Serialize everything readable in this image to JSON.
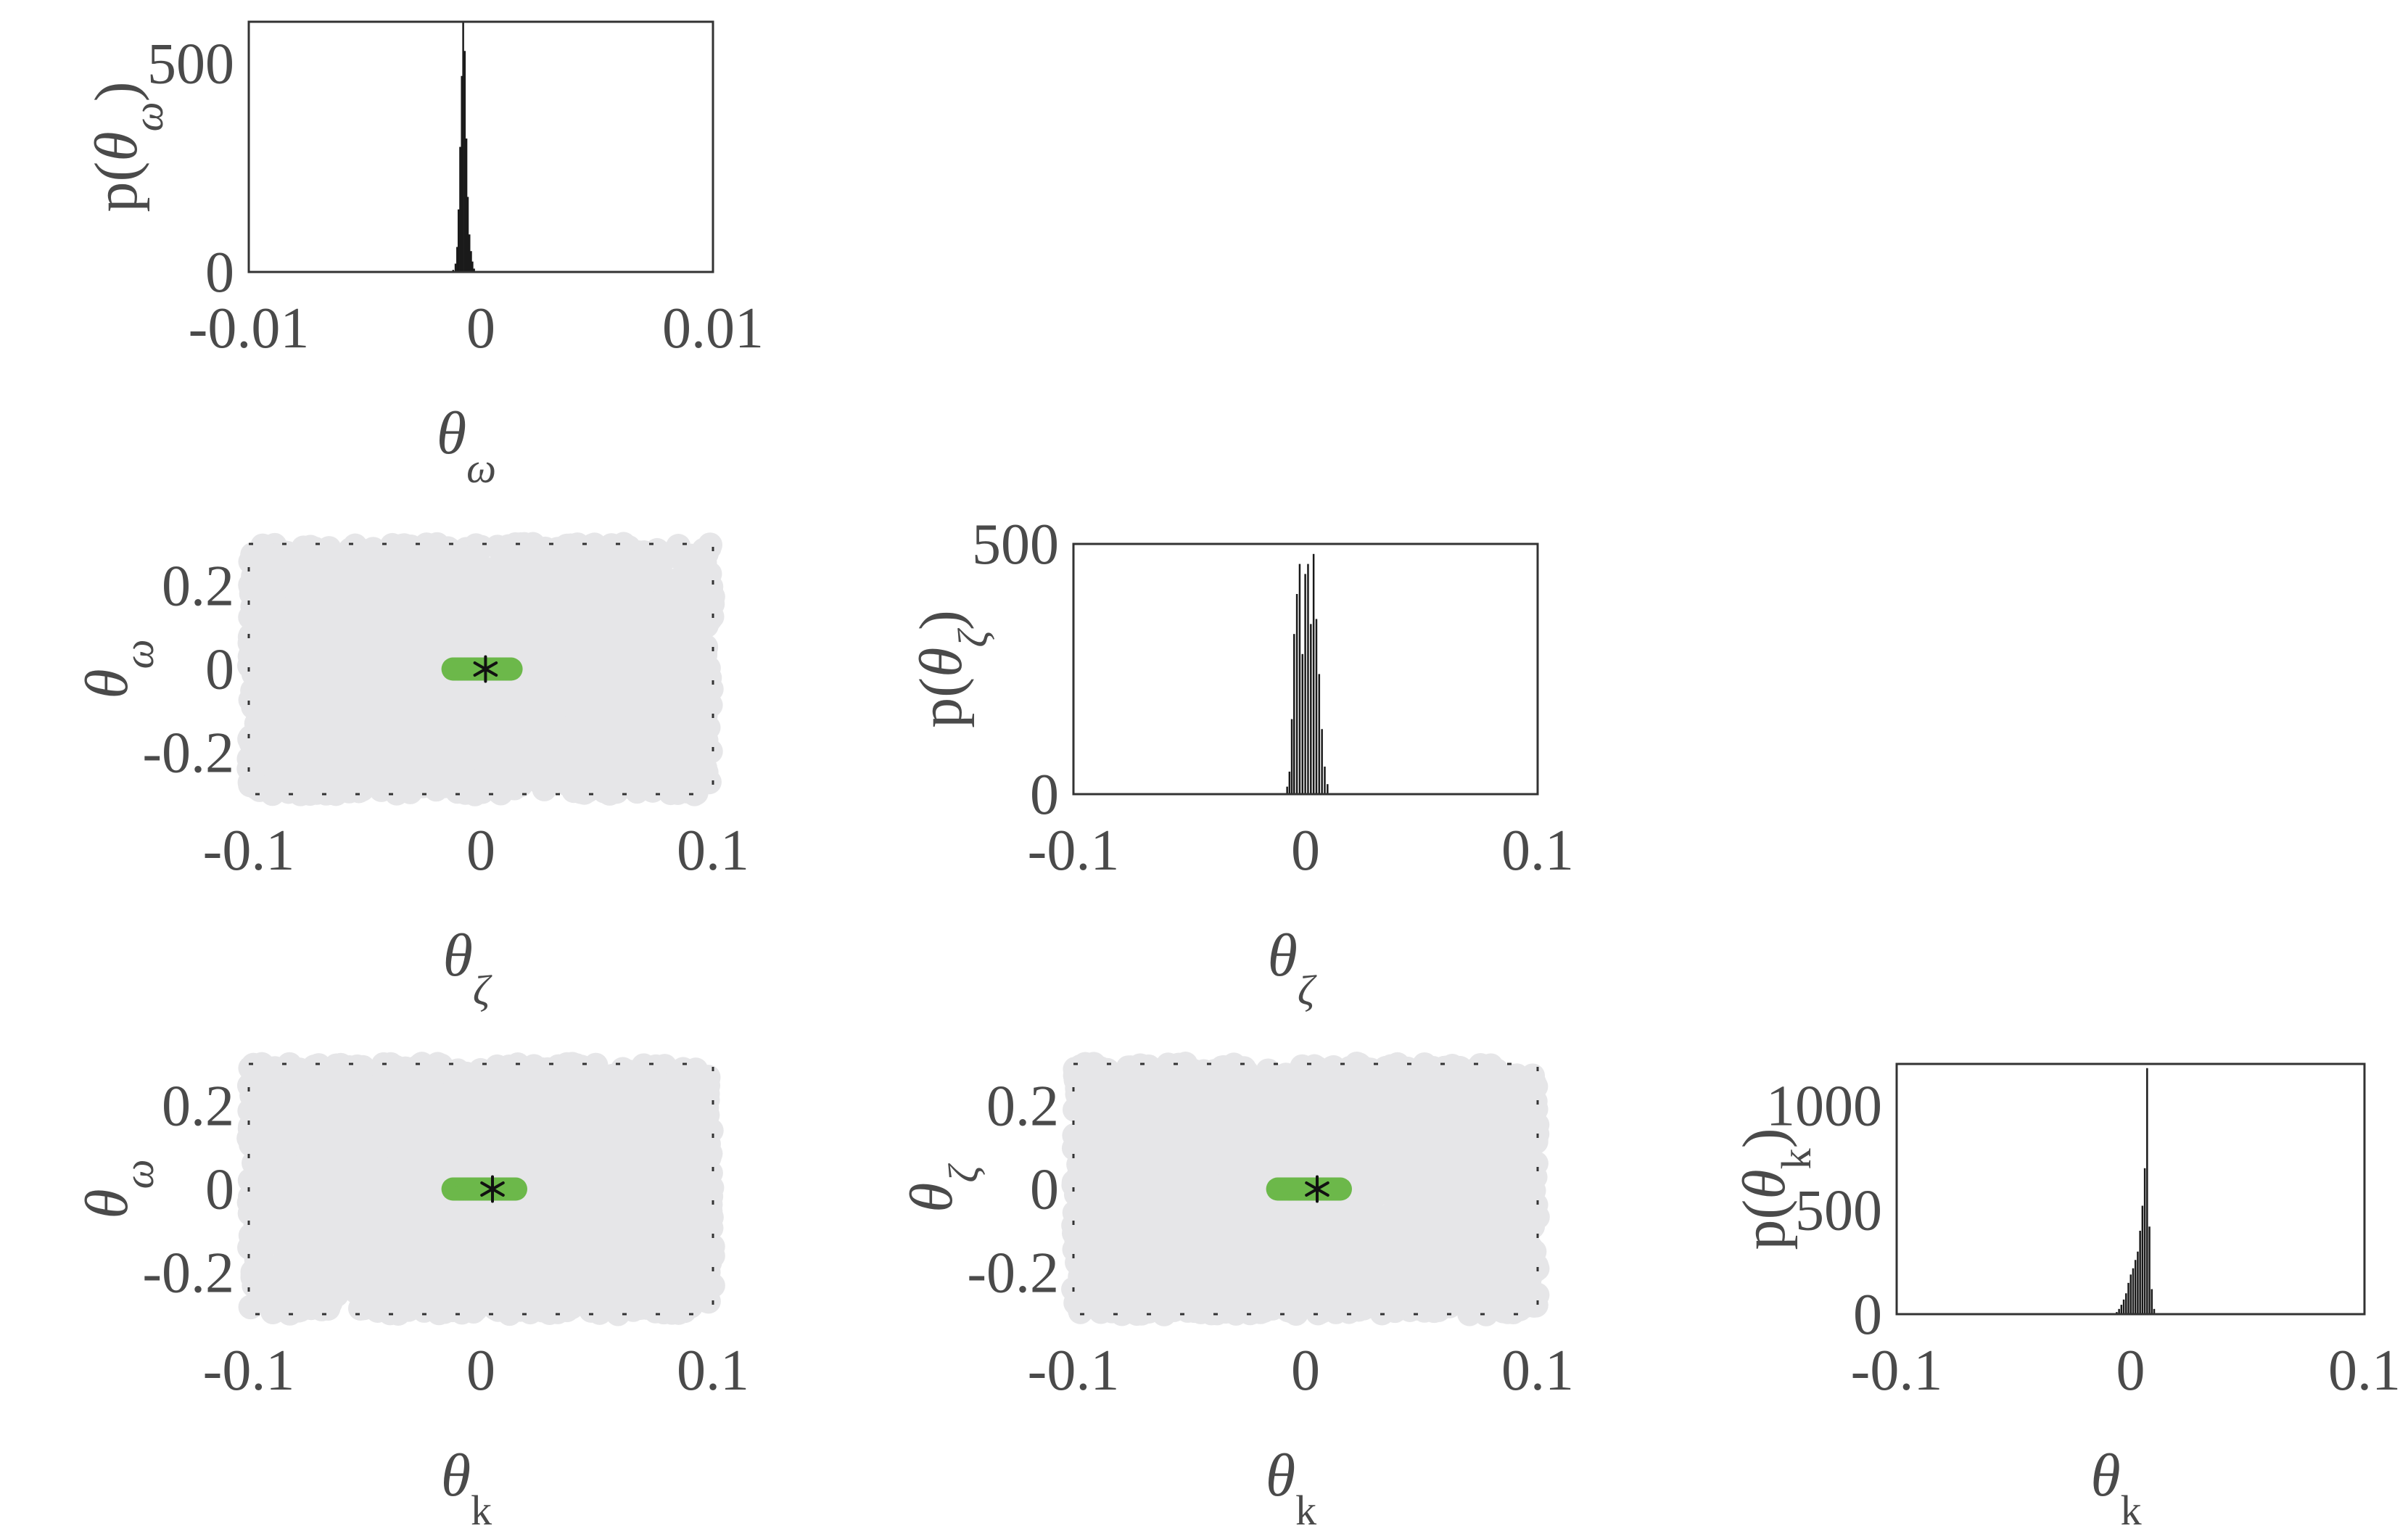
{
  "figure": {
    "colors": {
      "prior": "#e6e6e8",
      "posterior": "#6cb84a",
      "histogram": "#1a1a1a",
      "axis_text": "#4a4a4a",
      "frame": "#333333",
      "marker": "#111111"
    },
    "symbols": {
      "theta": "θ",
      "p_prefix": "p(",
      "p_suffix": ")"
    }
  },
  "chart_data": [
    {
      "type": "histogram",
      "row": 1,
      "col": 1,
      "xlabel": {
        "symbol": "θ",
        "sub": "ω"
      },
      "ylabel": {
        "symbol": "θ",
        "sub": "ω"
      },
      "xlim": [
        -0.01,
        0.01
      ],
      "ylim": [
        0,
        600
      ],
      "xticks": [
        -0.01,
        0,
        0.01
      ],
      "xtick_labels": [
        "-0.01",
        "0",
        "0.01"
      ],
      "yticks": [
        0,
        500
      ],
      "ytick_labels": [
        "0",
        "500"
      ],
      "bins": [
        [
          -0.0012,
          5
        ],
        [
          -0.0011,
          20
        ],
        [
          -0.00103,
          60
        ],
        [
          -0.00097,
          150
        ],
        [
          -0.0009,
          300
        ],
        [
          -0.00083,
          470
        ],
        [
          -0.00077,
          600
        ],
        [
          -0.0007,
          530
        ],
        [
          -0.00063,
          320
        ],
        [
          -0.00057,
          180
        ],
        [
          -0.0005,
          90
        ],
        [
          -0.00043,
          50
        ],
        [
          -0.00037,
          25
        ],
        [
          -0.0003,
          8
        ]
      ]
    },
    {
      "type": "scatter",
      "row": 2,
      "col": 1,
      "xlabel": {
        "symbol": "θ",
        "sub": "ζ"
      },
      "ylabel": {
        "symbol": "θ",
        "sub": "ω"
      },
      "xlim": [
        -0.1,
        0.1
      ],
      "ylim": [
        -0.3,
        0.3
      ],
      "xticks": [
        -0.1,
        0,
        0.1
      ],
      "xtick_labels": [
        "-0.1",
        "0",
        "0.1"
      ],
      "yticks": [
        -0.2,
        0,
        0.2
      ],
      "ytick_labels": [
        "-0.2",
        "0",
        "0.2"
      ],
      "prior": {
        "x": [
          -0.1,
          0.1
        ],
        "y": [
          -0.3,
          0.3
        ]
      },
      "posterior": {
        "x": [
          -0.012,
          0.013
        ],
        "y": [
          0,
          0
        ]
      },
      "true_value": {
        "x": 0.002,
        "y": 0
      }
    },
    {
      "type": "histogram",
      "row": 2,
      "col": 2,
      "xlabel": {
        "symbol": "θ",
        "sub": "ζ"
      },
      "ylabel": {
        "symbol": "θ",
        "sub": "ζ"
      },
      "xlim": [
        -0.1,
        0.1
      ],
      "ylim": [
        0,
        500
      ],
      "xticks": [
        -0.1,
        0,
        0.1
      ],
      "xtick_labels": [
        "-0.1",
        "0",
        "0.1"
      ],
      "yticks": [
        0,
        500
      ],
      "ytick_labels": [
        "0",
        "500"
      ],
      "bins": [
        [
          -0.008,
          15
        ],
        [
          -0.007,
          45
        ],
        [
          -0.006,
          150
        ],
        [
          -0.005,
          320
        ],
        [
          -0.0038,
          400
        ],
        [
          -0.0026,
          460
        ],
        [
          -0.0014,
          280
        ],
        [
          -0.0002,
          440
        ],
        [
          0.001,
          460
        ],
        [
          0.0022,
          340
        ],
        [
          0.0034,
          480
        ],
        [
          0.0046,
          350
        ],
        [
          0.0058,
          240
        ],
        [
          0.007,
          130
        ],
        [
          0.0082,
          55
        ],
        [
          0.0094,
          20
        ]
      ]
    },
    {
      "type": "scatter",
      "row": 3,
      "col": 1,
      "xlabel": {
        "symbol": "θ",
        "sub": "k"
      },
      "ylabel": {
        "symbol": "θ",
        "sub": "ω"
      },
      "xlim": [
        -0.1,
        0.1
      ],
      "ylim": [
        -0.3,
        0.3
      ],
      "xticks": [
        -0.1,
        0,
        0.1
      ],
      "xtick_labels": [
        "-0.1",
        "0",
        "0.1"
      ],
      "yticks": [
        -0.2,
        0,
        0.2
      ],
      "ytick_labels": [
        "-0.2",
        "0",
        "0.2"
      ],
      "prior": {
        "x": [
          -0.1,
          0.1
        ],
        "y": [
          -0.3,
          0.3
        ]
      },
      "posterior": {
        "x": [
          -0.012,
          0.015
        ],
        "y": [
          0,
          0
        ]
      },
      "true_value": {
        "x": 0.005,
        "y": 0
      }
    },
    {
      "type": "scatter",
      "row": 3,
      "col": 2,
      "xlabel": {
        "symbol": "θ",
        "sub": "k"
      },
      "ylabel": {
        "symbol": "θ",
        "sub": "ζ"
      },
      "xlim": [
        -0.1,
        0.1
      ],
      "ylim": [
        -0.3,
        0.3
      ],
      "xticks": [
        -0.1,
        0,
        0.1
      ],
      "xtick_labels": [
        "-0.1",
        "0",
        "0.1"
      ],
      "yticks": [
        -0.2,
        0,
        0.2
      ],
      "ytick_labels": [
        "-0.2",
        "0",
        "0.2"
      ],
      "prior": {
        "x": [
          -0.1,
          0.1
        ],
        "y": [
          -0.3,
          0.3
        ]
      },
      "posterior": {
        "x": [
          -0.012,
          0.015
        ],
        "y": [
          0,
          0
        ]
      },
      "true_value": {
        "x": 0.005,
        "y": 0
      }
    },
    {
      "type": "histogram",
      "row": 3,
      "col": 3,
      "xlabel": {
        "symbol": "θ",
        "sub": "k"
      },
      "ylabel": {
        "symbol": "θ",
        "sub": "k"
      },
      "xlim": [
        -0.1,
        0.1
      ],
      "ylim": [
        0,
        1200
      ],
      "xticks": [
        -0.1,
        0,
        0.1
      ],
      "xtick_labels": [
        "-0.1",
        "0",
        "0.1"
      ],
      "yticks": [
        0,
        500,
        1000
      ],
      "ytick_labels": [
        "0",
        "500",
        "1000"
      ],
      "bins": [
        [
          -0.006,
          10
        ],
        [
          -0.005,
          25
        ],
        [
          -0.004,
          45
        ],
        [
          -0.003,
          70
        ],
        [
          -0.002,
          100
        ],
        [
          -0.001,
          150
        ],
        [
          0,
          190
        ],
        [
          0.001,
          220
        ],
        [
          0.002,
          260
        ],
        [
          0.003,
          300
        ],
        [
          0.004,
          400
        ],
        [
          0.005,
          520
        ],
        [
          0.006,
          700
        ],
        [
          0.007,
          1180
        ],
        [
          0.008,
          420
        ],
        [
          0.009,
          120
        ],
        [
          0.01,
          25
        ]
      ]
    }
  ]
}
